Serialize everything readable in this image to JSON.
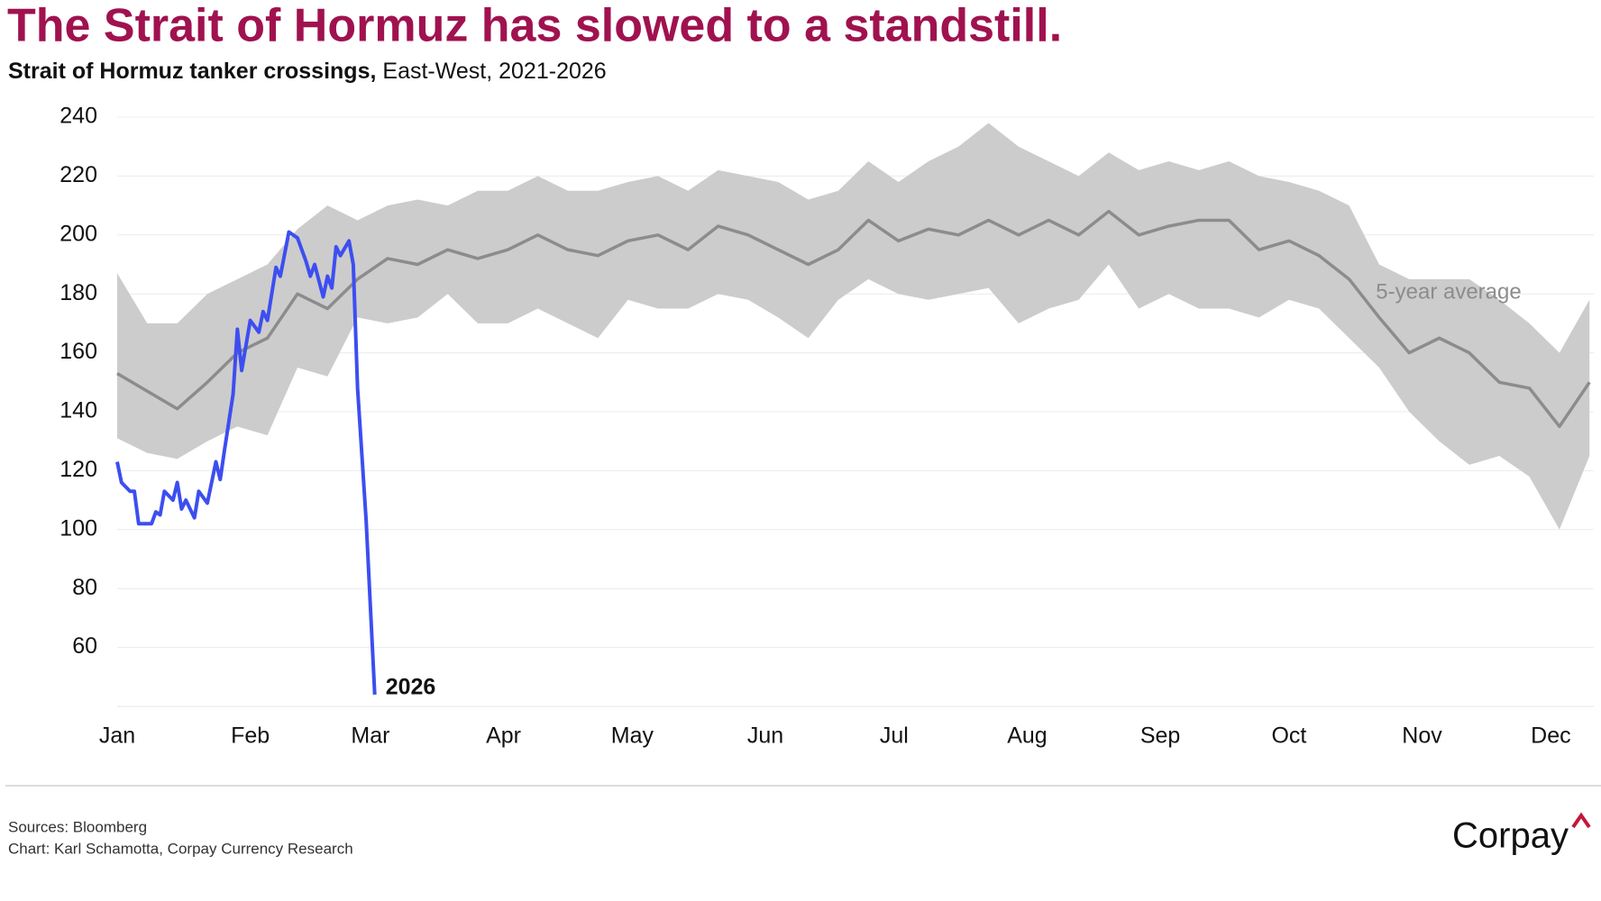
{
  "chart_data": {
    "type": "line",
    "title": "The Strait of Hormuz has slowed to a standstill.",
    "subtitle_lead": "Strait of Hormuz tanker crossings,",
    "subtitle": "East-West, 2021-2026",
    "xlim": [
      0,
      344
    ],
    "xticks": [
      {
        "value": 0,
        "label": "Jan"
      },
      {
        "value": 31,
        "label": "Feb"
      },
      {
        "value": 59,
        "label": "Mar"
      },
      {
        "value": 90,
        "label": "Apr"
      },
      {
        "value": 120,
        "label": "May"
      },
      {
        "value": 151,
        "label": "Jun"
      },
      {
        "value": 181,
        "label": "Jul"
      },
      {
        "value": 212,
        "label": "Aug"
      },
      {
        "value": 243,
        "label": "Sep"
      },
      {
        "value": 273,
        "label": "Oct"
      },
      {
        "value": 304,
        "label": "Nov"
      },
      {
        "value": 334,
        "label": "Dec"
      }
    ],
    "ylim": [
      40,
      240
    ],
    "yticks": [
      60,
      80,
      100,
      120,
      140,
      160,
      180,
      200,
      220,
      240
    ],
    "grid": true,
    "series": [
      {
        "name": "5-year average",
        "color": "#8c8c8c",
        "band_color": "#cccccc",
        "x": [
          0,
          7,
          14,
          21,
          28,
          35,
          42,
          49,
          56,
          63,
          70,
          77,
          84,
          91,
          98,
          105,
          112,
          119,
          126,
          133,
          140,
          147,
          154,
          161,
          168,
          175,
          182,
          189,
          196,
          203,
          210,
          217,
          224,
          231,
          238,
          245,
          252,
          259,
          266,
          273,
          280,
          287,
          294,
          301,
          308,
          315,
          322,
          329,
          336,
          343
        ],
        "values": [
          153,
          147,
          141,
          150,
          160,
          165,
          180,
          175,
          185,
          192,
          190,
          195,
          192,
          195,
          200,
          195,
          193,
          198,
          200,
          195,
          203,
          200,
          195,
          190,
          195,
          205,
          198,
          202,
          200,
          205,
          200,
          205,
          200,
          208,
          200,
          203,
          205,
          205,
          195,
          198,
          193,
          185,
          172,
          160,
          165,
          160,
          150,
          148,
          135,
          150
        ],
        "band_lower": [
          131,
          126,
          124,
          130,
          135,
          132,
          155,
          152,
          172,
          170,
          172,
          180,
          170,
          170,
          175,
          170,
          165,
          178,
          175,
          175,
          180,
          178,
          172,
          165,
          178,
          185,
          180,
          178,
          180,
          182,
          170,
          175,
          178,
          190,
          175,
          180,
          175,
          175,
          172,
          178,
          175,
          165,
          155,
          140,
          130,
          122,
          125,
          118,
          100,
          125
        ],
        "band_upper": [
          187,
          170,
          170,
          180,
          185,
          190,
          202,
          210,
          205,
          210,
          212,
          210,
          215,
          215,
          220,
          215,
          215,
          218,
          220,
          215,
          222,
          220,
          218,
          212,
          215,
          225,
          218,
          225,
          230,
          238,
          230,
          225,
          220,
          228,
          222,
          225,
          222,
          225,
          220,
          218,
          215,
          210,
          190,
          185,
          185,
          185,
          178,
          170,
          160,
          178
        ]
      },
      {
        "name": "2026",
        "color": "#3d4ef0",
        "x": [
          0,
          1,
          3,
          4,
          5,
          8,
          9,
          10,
          11,
          13,
          14,
          15,
          16,
          18,
          19,
          21,
          23,
          24,
          25,
          27,
          28,
          29,
          31,
          33,
          34,
          35,
          37,
          38,
          40,
          42,
          44,
          45,
          46,
          48,
          49,
          50,
          51,
          52,
          54,
          55,
          56,
          58,
          60
        ],
        "values": [
          123,
          116,
          113,
          113,
          102,
          102,
          106,
          105,
          113,
          110,
          116,
          107,
          110,
          104,
          113,
          109,
          123,
          117,
          127,
          146,
          168,
          154,
          171,
          167,
          174,
          171,
          189,
          186,
          201,
          199,
          191,
          186,
          190,
          179,
          186,
          182,
          196,
          193,
          198,
          190,
          148,
          103,
          44
        ]
      }
    ]
  },
  "footer": {
    "sources": "Sources: Bloomberg",
    "credit": "Chart: Karl Schamotta, Corpay Currency Research",
    "logo": "Corpay"
  }
}
